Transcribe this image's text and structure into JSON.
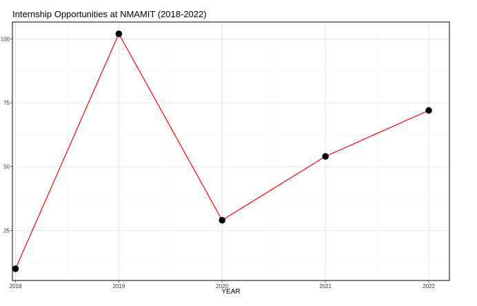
{
  "chart_data": {
    "type": "line",
    "title": "Internship Opportunities at NMAMIT (2018-2022)",
    "xlabel": "YEAR",
    "ylabel": "",
    "x": [
      2018,
      2019,
      2020,
      2021,
      2022
    ],
    "x_tick_labels": [
      "2018",
      "2019",
      "2020",
      "2021",
      "2022"
    ],
    "series": [
      {
        "values": [
          10,
          102,
          29,
          54,
          72
        ],
        "color": "#ff0000",
        "marker_color": "#000000"
      }
    ],
    "xlim": [
      2017.97,
      2022.2
    ],
    "ylim": [
      5.4,
      106.6
    ],
    "y_ticks": [
      25,
      50,
      75,
      100
    ],
    "y_tick_labels": [
      "25",
      "50",
      "75",
      "100"
    ],
    "grid": true,
    "legend": "none"
  }
}
